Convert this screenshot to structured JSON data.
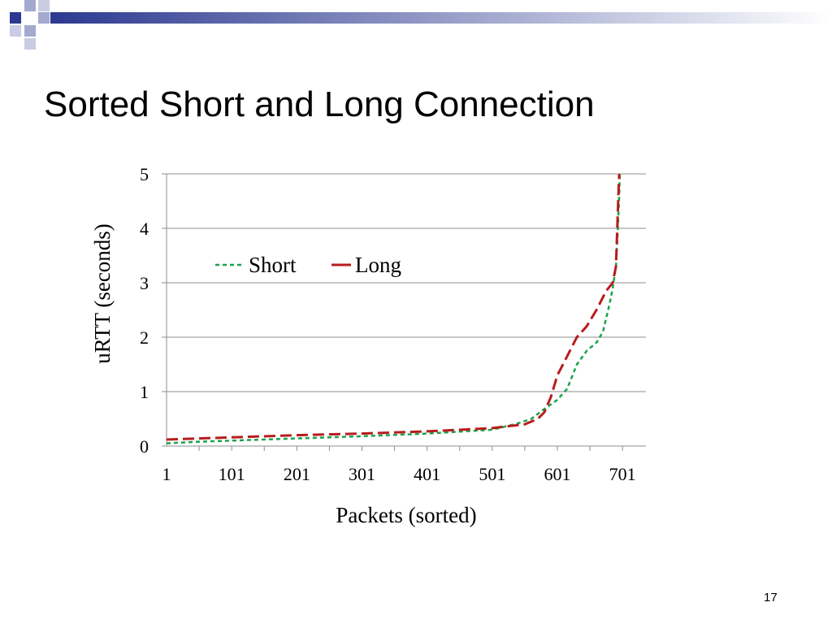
{
  "slide": {
    "title": "Sorted Short and Long Connection",
    "page_number": "17",
    "accent_color": "#2B3990"
  },
  "chart_data": {
    "type": "line",
    "xlabel": "Packets (sorted)",
    "ylabel": "uRTT (seconds)",
    "x_tick_labels": [
      "1",
      "101",
      "201",
      "301",
      "401",
      "501",
      "601",
      "701"
    ],
    "x_ticks": [
      1,
      101,
      201,
      301,
      401,
      501,
      601,
      701
    ],
    "y_tick_labels": [
      "0",
      "1",
      "2",
      "3",
      "4",
      "5"
    ],
    "y_ticks": [
      0,
      1,
      2,
      3,
      4,
      5
    ],
    "xlim": [
      1,
      737
    ],
    "ylim": [
      0,
      5
    ],
    "grid": "horizontal",
    "legend_position": "top-left",
    "series": [
      {
        "name": "Short",
        "color": "#1AA24A",
        "style": "dashed",
        "x": [
          1,
          51,
          101,
          201,
          301,
          401,
          501,
          541,
          561,
          581,
          601,
          616,
          631,
          646,
          661,
          671,
          681,
          686,
          691,
          694,
          696,
          697
        ],
        "values": [
          0.05,
          0.08,
          0.1,
          0.14,
          0.18,
          0.23,
          0.3,
          0.42,
          0.5,
          0.68,
          0.85,
          1.05,
          1.5,
          1.75,
          1.9,
          2.1,
          2.6,
          2.9,
          3.3,
          4.0,
          4.6,
          5.0
        ]
      },
      {
        "name": "Long",
        "color": "#B81C1C",
        "style": "dashed",
        "x": [
          1,
          51,
          101,
          201,
          301,
          401,
          501,
          551,
          571,
          581,
          591,
          601,
          616,
          631,
          646,
          661,
          676,
          686,
          691,
          693,
          695,
          696
        ],
        "values": [
          0.12,
          0.14,
          0.16,
          0.2,
          0.23,
          0.27,
          0.33,
          0.4,
          0.5,
          0.62,
          0.9,
          1.3,
          1.65,
          2.0,
          2.2,
          2.5,
          2.85,
          3.0,
          3.3,
          4.0,
          4.7,
          5.0
        ]
      }
    ]
  }
}
